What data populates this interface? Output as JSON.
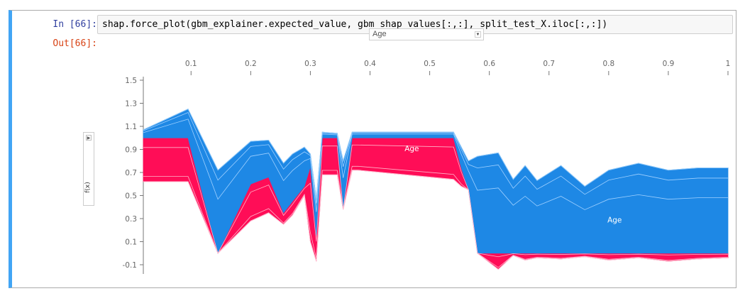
{
  "cell": {
    "in_prompt": "In [66]:",
    "out_prompt": "Out[66]:",
    "code": "shap.force_plot(gbm_explainer.expected_value, gbm_shap_values[:,:], split_test_X.iloc[:,:])"
  },
  "controls": {
    "x_feature_select": "Age",
    "y_axis_label": "f(x)",
    "y_toggle_icon": "triangle-right-icon",
    "select_icon": "triangle-down-icon"
  },
  "colors": {
    "positive": "#ff0d57",
    "negative": "#1e88e5",
    "cell_accent": "#42a5f5"
  },
  "chart_data": {
    "type": "area",
    "title": "",
    "xlabel": "Age",
    "ylabel": "f(x)",
    "xlim": [
      0.02,
      1.0
    ],
    "ylim": [
      -0.18,
      1.58
    ],
    "x_ticks": [
      "0.1",
      "0.2",
      "0.3",
      "0.4",
      "0.5",
      "0.6",
      "0.7",
      "0.8",
      "0.9",
      "1"
    ],
    "y_ticks": [
      "1.5",
      "1.3",
      "1.1",
      "0.9",
      "0.7",
      "0.5",
      "0.3",
      "0.1",
      "-0.1"
    ],
    "annotations": [
      {
        "text": "Age",
        "x": 0.47,
        "y": 0.91,
        "series": "positive"
      },
      {
        "text": "Age",
        "x": 0.81,
        "y": 0.29,
        "series": "negative"
      }
    ],
    "series": [
      {
        "role": "red_top",
        "x": [
          0.02,
          0.095,
          0.145,
          0.2,
          0.23,
          0.255,
          0.27,
          0.29,
          0.3,
          0.31,
          0.32,
          0.345,
          0.355,
          0.37,
          0.38,
          0.54,
          0.553,
          0.565,
          0.58,
          0.615,
          0.64,
          0.66,
          0.68,
          0.72,
          0.76,
          0.8,
          0.85,
          0.9,
          0.95,
          1.0
        ],
        "values": [
          1.0,
          1.0,
          0.0,
          0.6,
          0.66,
          0.35,
          0.45,
          0.58,
          0.75,
          0.15,
          1.0,
          1.0,
          0.38,
          1.0,
          1.0,
          1.0,
          0.74,
          0.55,
          0.0,
          0.0,
          0.0,
          0.0,
          0.0,
          0.0,
          0.0,
          0.0,
          0.0,
          0.0,
          0.0,
          0.0
        ]
      },
      {
        "role": "red_bottom",
        "x": [
          0.02,
          0.095,
          0.145,
          0.2,
          0.23,
          0.255,
          0.27,
          0.29,
          0.3,
          0.31,
          0.32,
          0.345,
          0.355,
          0.37,
          0.38,
          0.54,
          0.553,
          0.565,
          0.58,
          0.615,
          0.64,
          0.66,
          0.68,
          0.72,
          0.76,
          0.8,
          0.85,
          0.9,
          0.95,
          1.0
        ],
        "values": [
          0.62,
          0.62,
          0.0,
          0.28,
          0.35,
          0.25,
          0.33,
          0.5,
          0.1,
          -0.07,
          0.68,
          0.68,
          0.38,
          0.72,
          0.72,
          0.64,
          0.58,
          0.55,
          0.0,
          -0.14,
          -0.02,
          -0.06,
          -0.04,
          -0.05,
          -0.03,
          -0.06,
          -0.04,
          -0.07,
          -0.05,
          -0.04
        ]
      },
      {
        "role": "blue_top",
        "x": [
          0.02,
          0.095,
          0.145,
          0.2,
          0.23,
          0.255,
          0.27,
          0.29,
          0.3,
          0.31,
          0.32,
          0.345,
          0.355,
          0.37,
          0.38,
          0.54,
          0.553,
          0.565,
          0.58,
          0.615,
          0.64,
          0.66,
          0.68,
          0.72,
          0.76,
          0.8,
          0.85,
          0.9,
          0.95,
          1.0
        ],
        "values": [
          1.07,
          1.25,
          0.72,
          0.97,
          0.98,
          0.78,
          0.86,
          0.92,
          0.86,
          0.47,
          1.05,
          1.04,
          0.8,
          1.05,
          1.05,
          1.05,
          0.92,
          0.8,
          0.84,
          0.87,
          0.64,
          0.76,
          0.63,
          0.76,
          0.58,
          0.72,
          0.78,
          0.72,
          0.74,
          0.74
        ]
      },
      {
        "role": "blue_bottom",
        "x": [
          0.02,
          0.095,
          0.145,
          0.2,
          0.23,
          0.255,
          0.27,
          0.29,
          0.3,
          0.31,
          0.32,
          0.345,
          0.355,
          0.37,
          0.38,
          0.54,
          0.553,
          0.565,
          0.58,
          0.615,
          0.64,
          0.66,
          0.68,
          0.72,
          0.76,
          0.8,
          0.85,
          0.9,
          0.95,
          1.0
        ],
        "values": [
          1.0,
          1.0,
          0.0,
          0.6,
          0.66,
          0.35,
          0.45,
          0.58,
          0.75,
          0.15,
          1.0,
          1.0,
          0.38,
          1.0,
          1.0,
          1.0,
          0.74,
          0.55,
          0.0,
          0.0,
          0.0,
          0.0,
          0.0,
          0.0,
          0.0,
          0.0,
          0.0,
          0.0,
          0.0,
          0.0
        ]
      }
    ]
  }
}
